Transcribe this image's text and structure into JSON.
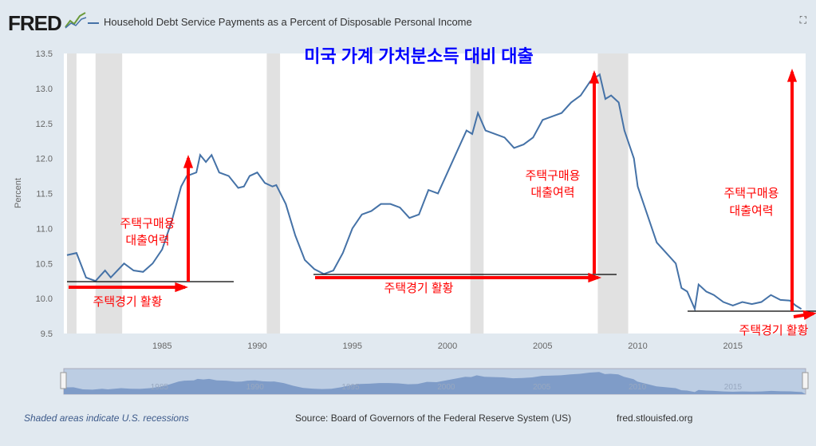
{
  "header": {
    "logo": "FRED",
    "series_title": "Household Debt Service Payments as a Percent of Disposable Personal Income",
    "fullscreen_icon": "expand-icon"
  },
  "footer": {
    "note": "Shaded areas indicate U.S. recessions",
    "source": "Source: Board of Governors of the Federal Reserve System (US)",
    "site": "fred.stlouisfed.org"
  },
  "annotations": {
    "title": "미국 가계 가처분소득 대비 대출",
    "boom": "주택경기 활황",
    "capacity_line1": "주택구매용",
    "capacity_line2": "대출여력",
    "color": "#ff0000",
    "title_color": "#0000ff"
  },
  "chart_data": {
    "type": "line",
    "title": "Household Debt Service Payments as a Percent of Disposable Personal Income",
    "ylabel": "Percent",
    "xlabel": "",
    "ylim": [
      9.5,
      13.5
    ],
    "xlim": [
      1980,
      2018.8
    ],
    "yticks": [
      "9.5",
      "10.0",
      "10.5",
      "11.0",
      "11.5",
      "12.0",
      "12.5",
      "13.0",
      "13.5"
    ],
    "xticks": [
      "1985",
      "1990",
      "1995",
      "2000",
      "2005",
      "2010",
      "2015"
    ],
    "line_color": "#4572a7",
    "recessions": [
      [
        1980.0,
        1980.5
      ],
      [
        1981.5,
        1982.9
      ],
      [
        1990.5,
        1991.2
      ],
      [
        2001.2,
        2001.9
      ],
      [
        2007.9,
        2009.5
      ]
    ],
    "x": [
      1980,
      1980.5,
      1981,
      1981.5,
      1982,
      1982.3,
      1983,
      1983.5,
      1984,
      1984.5,
      1985,
      1985.5,
      1986,
      1986.3,
      1986.8,
      1987,
      1987.3,
      1987.6,
      1988,
      1988.5,
      1989,
      1989.3,
      1989.6,
      1990,
      1990.4,
      1990.8,
      1991,
      1991.5,
      1992,
      1992.5,
      1993,
      1993.5,
      1994,
      1994.5,
      1995,
      1995.5,
      1996,
      1996.5,
      1997,
      1997.5,
      1998,
      1998.5,
      1999,
      1999.5,
      2000,
      2000.5,
      2001,
      2001.3,
      2001.6,
      2002,
      2002.5,
      2003,
      2003.5,
      2004,
      2004.5,
      2005,
      2005.5,
      2006,
      2006.5,
      2007,
      2007.5,
      2008,
      2008.3,
      2008.6,
      2009,
      2009.3,
      2009.8,
      2010,
      2010.5,
      2011,
      2011.5,
      2012,
      2012.3,
      2012.6,
      2013,
      2013.2,
      2013.6,
      2014,
      2014.5,
      2015,
      2015.5,
      2016,
      2016.5,
      2017,
      2017.5,
      2018,
      2018.3,
      2018.6
    ],
    "values": [
      10.62,
      10.65,
      10.3,
      10.25,
      10.4,
      10.3,
      10.5,
      10.4,
      10.38,
      10.5,
      10.7,
      11.1,
      11.6,
      11.75,
      11.8,
      12.05,
      11.95,
      12.05,
      11.8,
      11.75,
      11.58,
      11.6,
      11.75,
      11.8,
      11.65,
      11.6,
      11.62,
      11.35,
      10.9,
      10.55,
      10.42,
      10.35,
      10.4,
      10.65,
      11.0,
      11.2,
      11.25,
      11.35,
      11.35,
      11.3,
      11.15,
      11.2,
      11.55,
      11.5,
      11.8,
      12.1,
      12.4,
      12.35,
      12.65,
      12.4,
      12.35,
      12.3,
      12.15,
      12.2,
      12.3,
      12.55,
      12.6,
      12.65,
      12.8,
      12.9,
      13.1,
      13.2,
      12.85,
      12.9,
      12.8,
      12.4,
      12.0,
      11.6,
      11.2,
      10.8,
      10.65,
      10.5,
      10.15,
      10.1,
      9.85,
      10.2,
      10.1,
      10.05,
      9.95,
      9.9,
      9.95,
      9.92,
      9.95,
      10.05,
      9.98,
      9.97,
      9.9,
      9.85
    ]
  }
}
